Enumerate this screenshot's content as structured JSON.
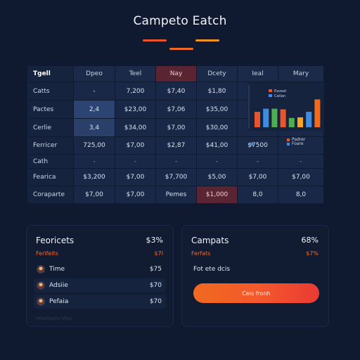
{
  "header": {
    "title": "Campeto Eatch"
  },
  "table": {
    "columns": [
      "Tgell",
      "Dpeo",
      "Teel",
      "Nay",
      "Dcety",
      "Ieal",
      "Mary"
    ],
    "rows": [
      {
        "label": "Catts",
        "cells": [
          "-",
          "7,200",
          "$7,40",
          "$1,80",
          "",
          ""
        ]
      },
      {
        "label": "Pactes",
        "cells": [
          "2,4",
          "$23,00",
          "$7,06",
          "$35,00",
          "",
          ""
        ]
      },
      {
        "label": "Cerlie",
        "cells": [
          "3,4",
          "$34,00",
          "$7,00",
          "$30,00",
          "",
          ""
        ]
      },
      {
        "label": "Ferricer",
        "cells": [
          "725,00",
          "$7,00",
          "$2,87",
          "$41,00",
          "$7500",
          ""
        ]
      },
      {
        "label": "Cath",
        "cells": [
          "-",
          "-",
          "-",
          "-",
          "-",
          "-"
        ]
      },
      {
        "label": "Fearica",
        "cells": [
          "$3,200",
          "$7,00",
          "$7,700",
          "$5,00",
          "$7,00",
          "$7,00"
        ]
      },
      {
        "label": "Coraparte",
        "cells": [
          "$7,00",
          "$7,00",
          "Pemes",
          "$1,000",
          "8,0",
          "8,0"
        ]
      }
    ]
  },
  "mini_chart": {
    "legend": [
      {
        "label": "Eaveat",
        "color": "#e8542c"
      },
      {
        "label": "Catlan",
        "color": "#3f8be0"
      }
    ],
    "bars": [
      {
        "value": 5,
        "color": "#e8542c"
      },
      {
        "value": 6,
        "color": "#3f8be0"
      },
      {
        "value": 6,
        "color": "#4caf50"
      },
      {
        "value": 5.8,
        "color": "#e8542c"
      },
      {
        "value": 3,
        "color": "#4caf50"
      },
      {
        "value": 3.2,
        "color": "#f4a623"
      },
      {
        "value": 5,
        "color": "#3f8be0"
      },
      {
        "value": 9,
        "color": "#f06a20"
      }
    ],
    "max": 10,
    "sub_legend": [
      {
        "label": "Eraplem",
        "color": "#3f8be0"
      },
      {
        "label": "Padrer",
        "color": "#e8542c"
      },
      {
        "label": "Foare",
        "color": "#3f8be0"
      }
    ]
  },
  "forecast_panel": {
    "title": "Feoricets",
    "value": "$3%",
    "sub_label": "Ferifeits",
    "sub_value": "$7I",
    "items": [
      {
        "label": "Time",
        "value": "$75"
      },
      {
        "label": "Adsiie",
        "value": "$70"
      },
      {
        "label": "Pefaia",
        "value": "$70"
      }
    ],
    "faded_text": "Hesrtaem Moo"
  },
  "compact_panel": {
    "title": "Campats",
    "value": "68%",
    "sub_label": "Ferfats",
    "sub_value": "$7%",
    "line": "Fot ete dcis",
    "button_label": "Ceis fronh"
  },
  "colors": {
    "background": "#0f1a30",
    "accent": "#f06a20",
    "highlight": "#5a2433"
  }
}
